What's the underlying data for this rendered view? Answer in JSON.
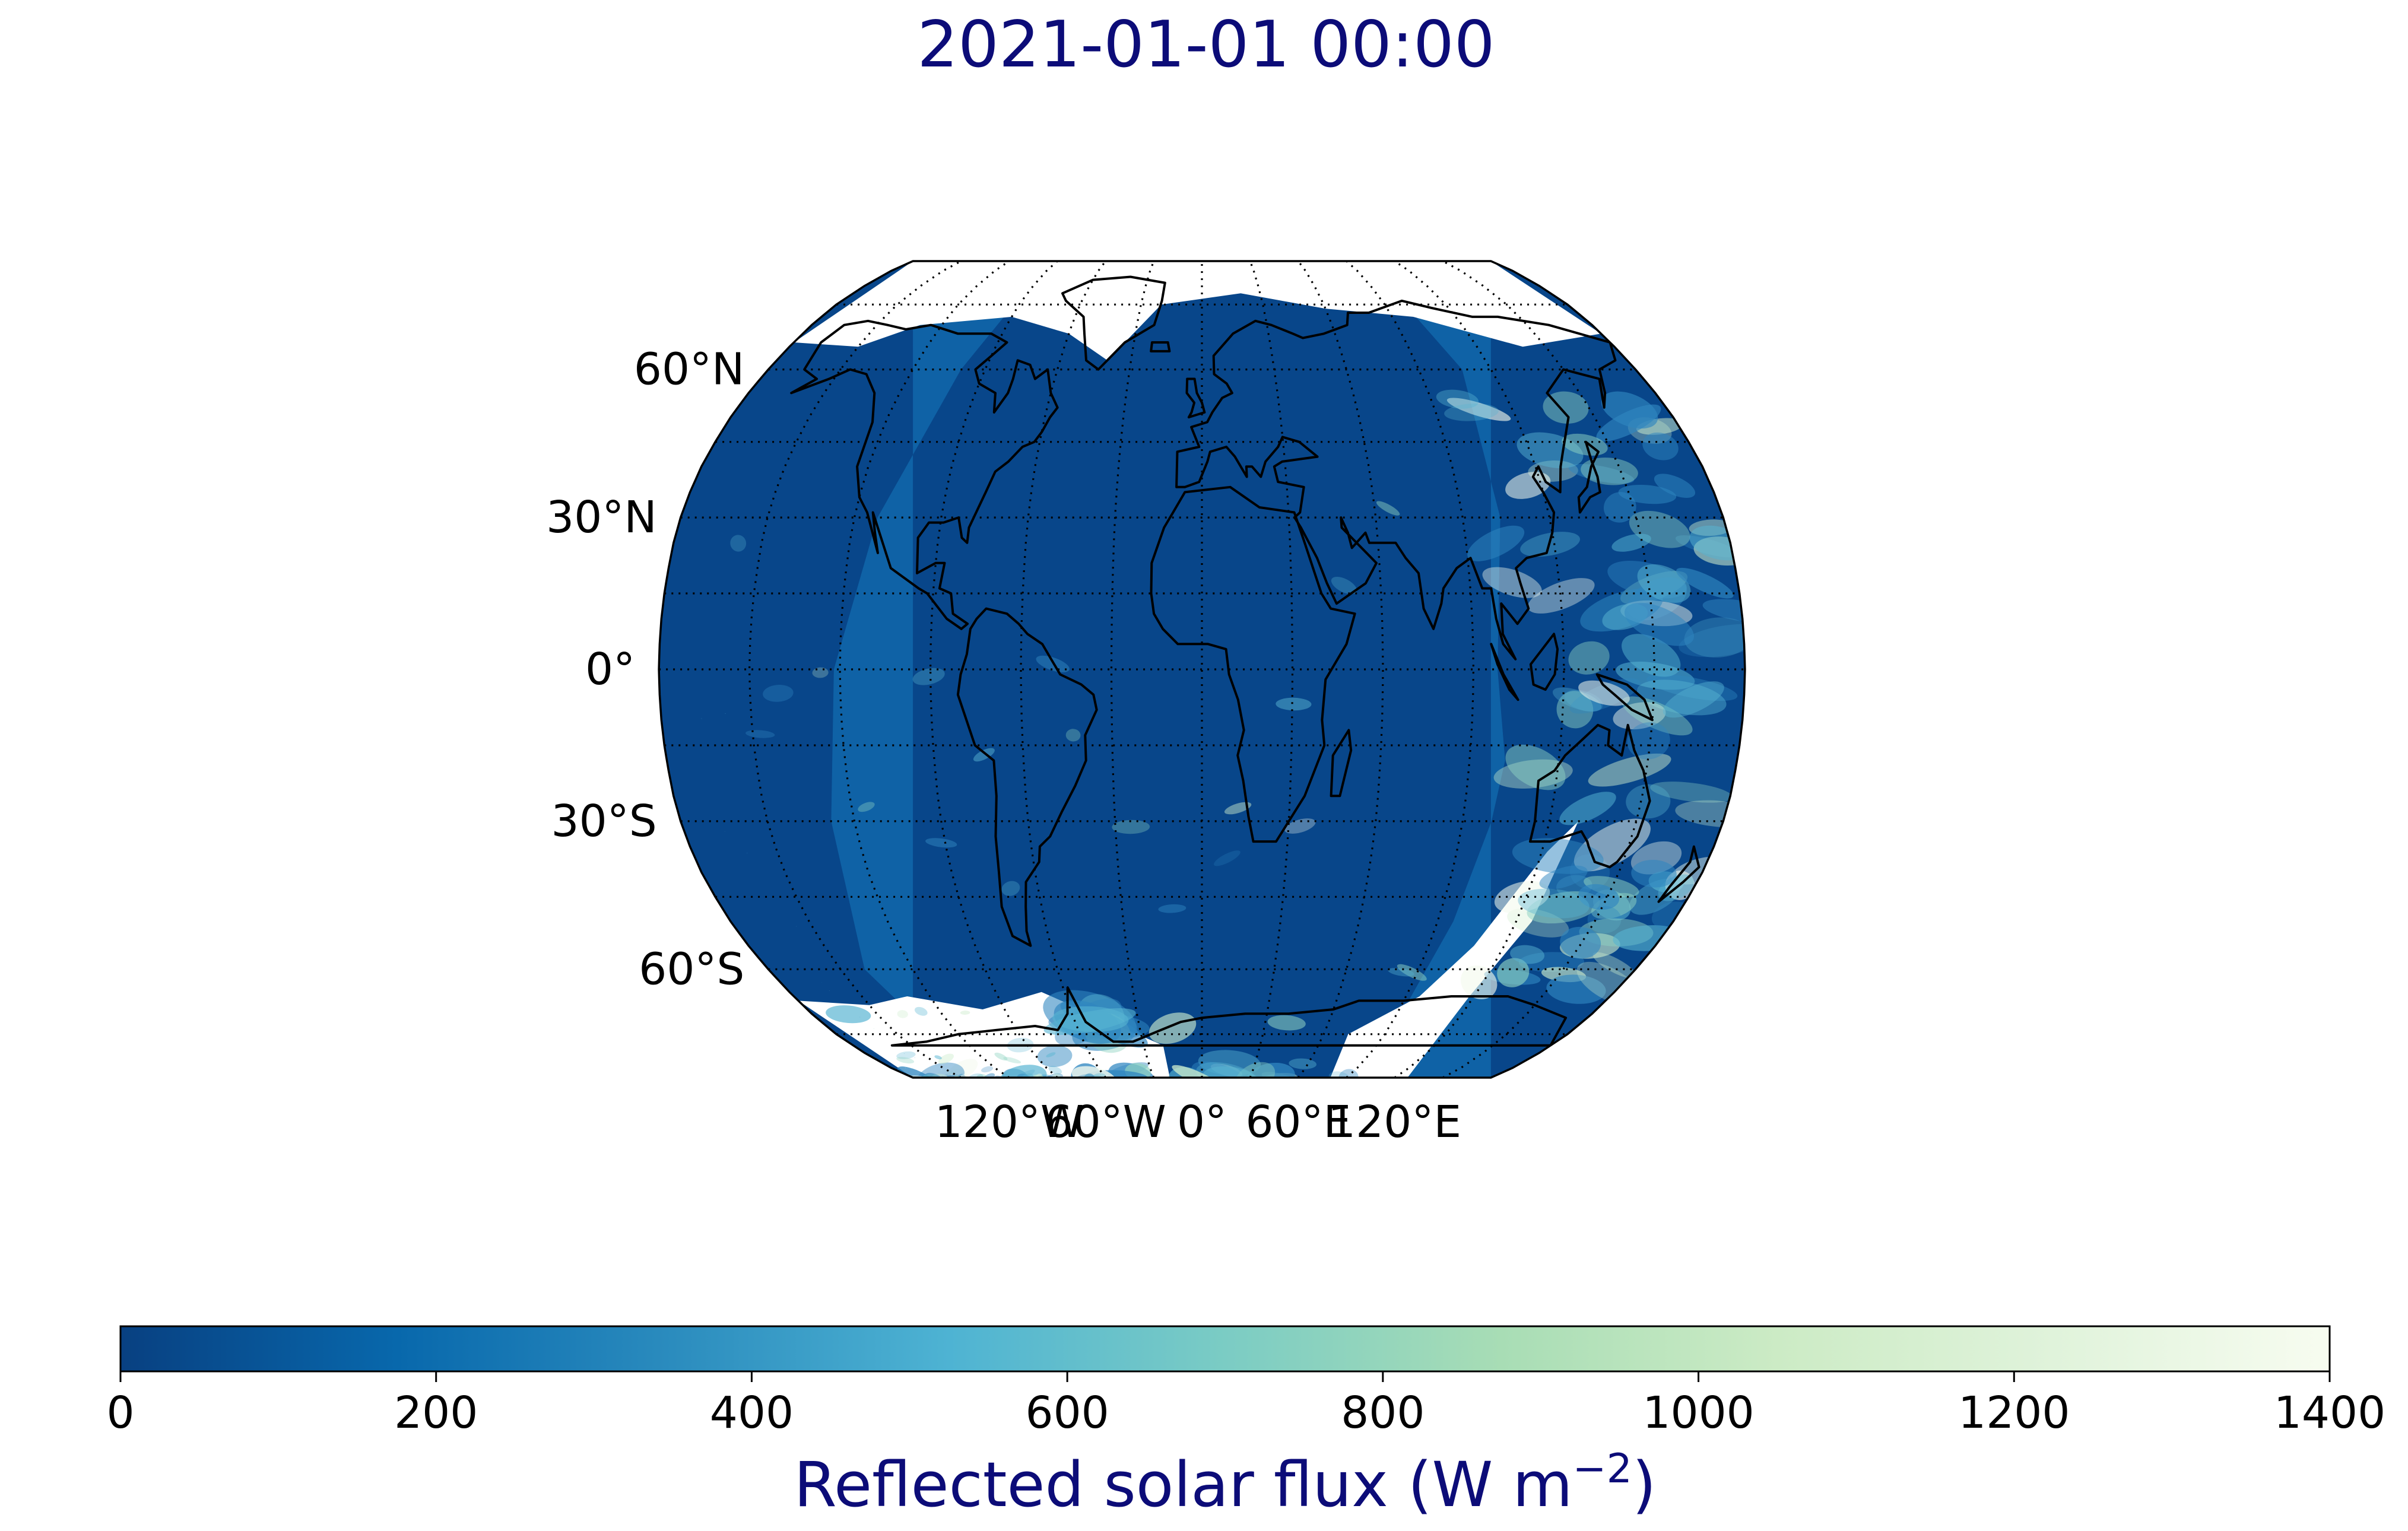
{
  "title": "2021-01-01 00:00",
  "title_color": "#0c0c78",
  "map": {
    "projection": "Robinson",
    "central_longitude": 0,
    "gridline_style": "dotted",
    "coastlines": true,
    "lat_lines": [
      -75,
      -60,
      -45,
      -30,
      -15,
      0,
      15,
      30,
      45,
      60,
      75
    ],
    "lon_lines": [
      -150,
      -120,
      -90,
      -60,
      -30,
      0,
      30,
      60,
      90,
      120,
      150
    ],
    "lat_labels": [
      {
        "lat": 60,
        "text": "60°N"
      },
      {
        "lat": 30,
        "text": "30°N"
      },
      {
        "lat": 0,
        "text": "0°"
      },
      {
        "lat": -30,
        "text": "30°S"
      },
      {
        "lat": -60,
        "text": "60°S"
      }
    ],
    "lon_labels": [
      {
        "lon": -120,
        "text": "120°W"
      },
      {
        "lon": -60,
        "text": "60°W"
      },
      {
        "lon": 0,
        "text": "0°"
      },
      {
        "lon": 60,
        "text": "60°E"
      },
      {
        "lon": 120,
        "text": "120°E"
      }
    ],
    "night_color": "#08468a",
    "day_color": "#0f62a6",
    "cloud_colors": [
      "#2f86c0",
      "#57b4d2",
      "#8fd3c2",
      "#cdeccc",
      "#f3faee"
    ]
  },
  "colorbar": {
    "cmap": "GnBu_r",
    "min": 0,
    "max": 1400,
    "ticks": [
      0,
      200,
      400,
      600,
      800,
      1000,
      1200,
      1400
    ],
    "label": "Reflected solar flux (W m",
    "label_sup": "−2",
    "label_close": ")",
    "label_color": "#0c0c78",
    "stops": [
      "#084081",
      "#0868ac",
      "#2b8cbe",
      "#4eb3d3",
      "#7bccc4",
      "#a8ddb5",
      "#ccebc5",
      "#e0f3db",
      "#f7fcf0"
    ]
  }
}
